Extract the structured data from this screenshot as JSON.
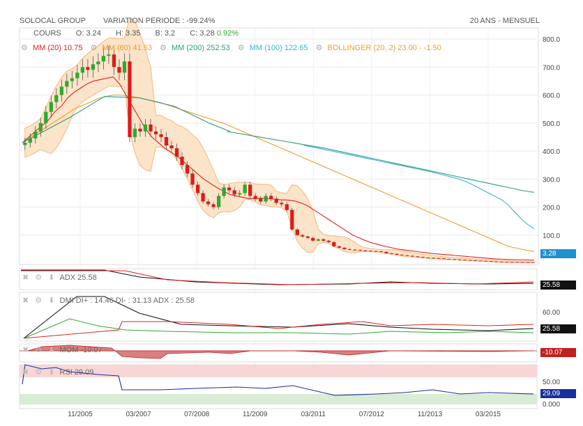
{
  "header": {
    "title": "SOLOCAL GROUP",
    "variation": "VARIATION PERIODE : -99.24%",
    "range": "20 ANS - MENSUEL"
  },
  "legend": {
    "cours": {
      "label": "COURS",
      "o": "O: 3.24",
      "h": "H: 3.35",
      "b": "B: 3.2",
      "c": "C: 3.28",
      "chg": "0.92%"
    },
    "mm20": "MM (20)  10.75",
    "mm60": "MM (60)  41.53",
    "mm200": "MM (200)  252.53",
    "mm100": "MM (100)  122.65",
    "boll": "BOLLINGER (20, 2)  23.00 - -1.50"
  },
  "indicators": {
    "adx_label": "ADX  25.58",
    "dmi_label": "DMI  DI+ : 14.46  DI- : 31.13  ADX : 25.58",
    "mom_label": "MOM  -10.07",
    "rsi_label": "RSI  29.09"
  },
  "badges": {
    "price": "3.28",
    "adx": "25.58",
    "dmi": "25.58",
    "mom": "-10.07",
    "rsi": "29.09"
  },
  "colors": {
    "up": "#2eaa2e",
    "down": "#dd1b1b",
    "mm20": "#e02020",
    "mm60": "#f29b2a",
    "mm100": "#35b5d0",
    "mm200": "#2e9c80",
    "boll_fill": "#fbe2c4",
    "boll_line": "#f2b26a",
    "mom_fill": "#d03030",
    "rsi_line": "#1a2f9c",
    "accent": "#2090d0"
  },
  "chart_data": {
    "type": "candlestick",
    "title": "SOLOCAL GROUP",
    "x_ticks": [
      "11/2005",
      "03/2007",
      "07/2008",
      "11/2009",
      "03/2011",
      "07/2012",
      "11/2013",
      "03/2015"
    ],
    "y_ticks": [
      "800.0",
      "700.0",
      "600.0",
      "500.0",
      "400.0",
      "300.0",
      "200.0",
      "100.0"
    ],
    "ylim": [
      0,
      840
    ],
    "grid": true,
    "series_close": [
      430,
      445,
      470,
      500,
      540,
      575,
      600,
      630,
      650,
      660,
      680,
      700,
      690,
      710,
      720,
      740,
      745,
      700,
      680,
      720,
      450,
      480,
      470,
      495,
      470,
      460,
      450,
      420,
      410,
      380,
      350,
      320,
      280,
      250,
      220,
      210,
      200,
      240,
      270,
      260,
      245,
      250,
      280,
      240,
      230,
      220,
      240,
      230,
      215,
      210,
      190,
      120,
      100,
      95,
      90,
      80,
      85,
      80,
      75,
      60,
      55,
      50,
      48,
      47,
      45,
      44,
      43,
      42,
      40,
      35,
      33,
      30,
      28,
      26,
      24,
      22,
      20,
      19,
      18,
      17,
      15,
      14,
      13,
      12,
      11,
      10,
      9,
      8,
      7,
      6,
      5,
      4.5,
      4,
      3.8,
      3.5,
      3.4,
      3.3,
      3.28
    ],
    "mm20": [
      430,
      450,
      470,
      490,
      510,
      540,
      560,
      590,
      610,
      625,
      640,
      650,
      655,
      660,
      665,
      640,
      600,
      560,
      520,
      480,
      450,
      430,
      410,
      395,
      380,
      360,
      340,
      320,
      300,
      285,
      270,
      258,
      245,
      240,
      235,
      230,
      230,
      232,
      230,
      228,
      226,
      225,
      222,
      215,
      205,
      190,
      175,
      160,
      145,
      130,
      115,
      100,
      90,
      80,
      72,
      66,
      60,
      55,
      50,
      47,
      44,
      41,
      38,
      35,
      33,
      31,
      29,
      27,
      25,
      23,
      21,
      19,
      17,
      15,
      14,
      13,
      12,
      11.5,
      11,
      10.75
    ],
    "mm60": [
      430,
      445,
      460,
      475,
      490,
      505,
      520,
      535,
      550,
      560,
      570,
      580,
      590,
      595,
      600,
      600,
      598,
      595,
      590,
      585,
      580,
      575,
      568,
      560,
      552,
      545,
      537,
      530,
      522,
      515,
      507,
      500,
      490,
      480,
      470,
      460,
      450,
      440,
      430,
      420,
      410,
      400,
      390,
      380,
      370,
      360,
      350,
      340,
      330,
      320,
      310,
      300,
      290,
      280,
      270,
      260,
      250,
      240,
      230,
      220,
      210,
      200,
      190,
      180,
      170,
      160,
      150,
      140,
      130,
      120,
      110,
      100,
      90,
      80,
      70,
      60,
      55,
      50,
      45,
      41.53
    ],
    "mm100": [
      420,
      417,
      413,
      409,
      405,
      401,
      397,
      393,
      389,
      385,
      381,
      377,
      373,
      369,
      365,
      361,
      357,
      353,
      349,
      345,
      341,
      337,
      333,
      329,
      325,
      320,
      315,
      310,
      305,
      300,
      293,
      285,
      275,
      265,
      255,
      245,
      235,
      225,
      210,
      190,
      170,
      150,
      135,
      122.65
    ],
    "mm200": [
      470,
      466,
      462,
      458,
      454,
      450,
      446,
      442,
      438,
      434,
      430,
      426,
      422,
      418,
      414,
      410,
      405,
      400,
      395,
      390,
      385,
      380,
      375,
      370,
      365,
      360,
      355,
      350,
      345,
      340,
      335,
      330,
      325,
      320,
      315,
      310,
      305,
      300,
      295,
      290,
      285,
      280,
      275,
      270,
      265,
      260,
      256,
      252.53
    ]
  }
}
